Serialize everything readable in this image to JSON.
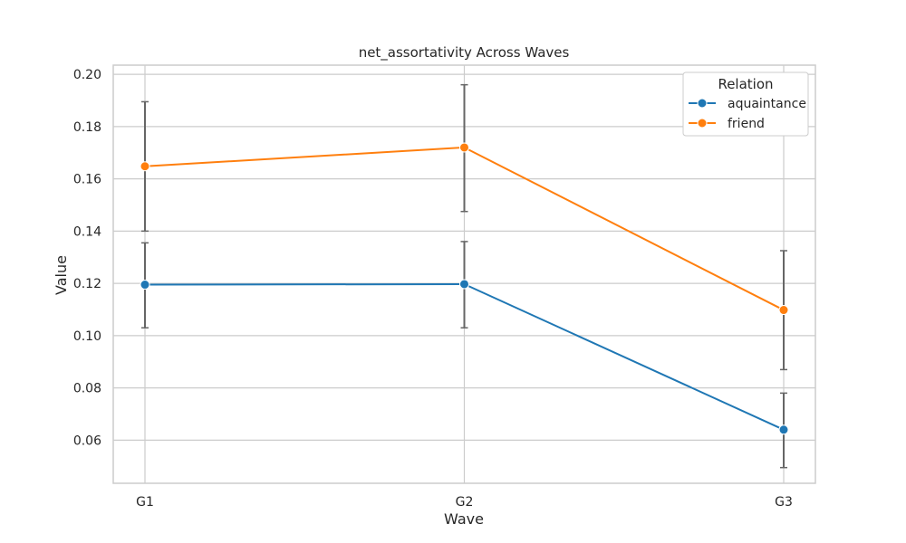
{
  "chart_data": {
    "type": "line",
    "title": "net_assortativity Across Waves",
    "xlabel": "Wave",
    "ylabel": "Value",
    "categories": [
      "G1",
      "G2",
      "G3"
    ],
    "ylim": [
      0.0435,
      0.2035
    ],
    "yticks": [
      "0.06",
      "0.08",
      "0.10",
      "0.12",
      "0.14",
      "0.16",
      "0.18",
      "0.20"
    ],
    "grid": true,
    "legend": {
      "title": "Relation",
      "placement": "top-right"
    },
    "series": [
      {
        "name": "aquaintance",
        "color": "#1f77b4",
        "values": [
          0.1195,
          0.1197,
          0.064
        ],
        "err_low": [
          0.103,
          0.103,
          0.0495
        ],
        "err_high": [
          0.1355,
          0.136,
          0.078
        ]
      },
      {
        "name": "friend",
        "color": "#ff7f0e",
        "values": [
          0.1648,
          0.172,
          0.1098
        ],
        "err_low": [
          0.14,
          0.1475,
          0.087
        ],
        "err_high": [
          0.1895,
          0.196,
          0.1325
        ]
      }
    ],
    "errorbar_color": "#666666"
  }
}
